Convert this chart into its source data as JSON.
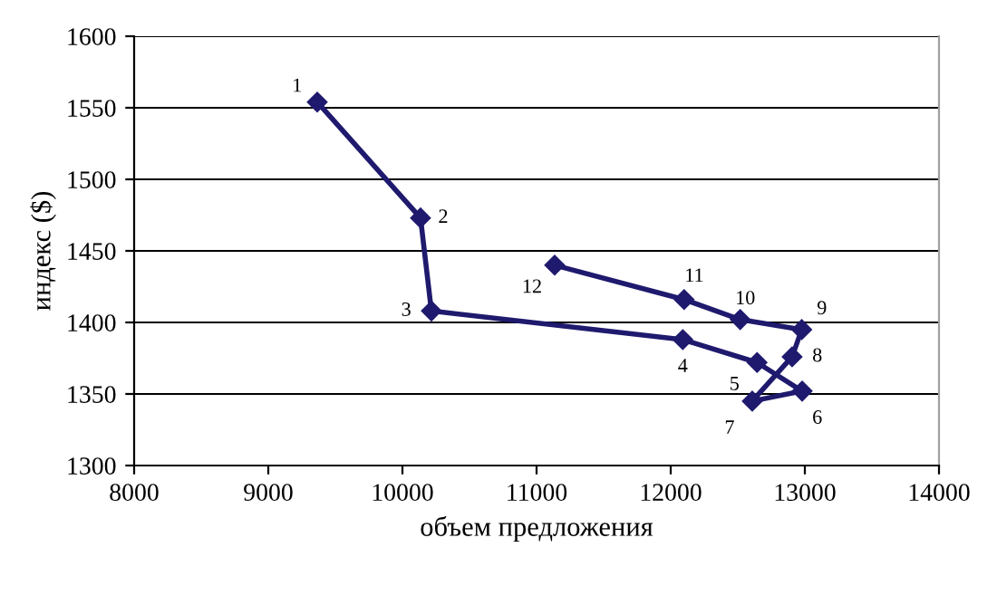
{
  "chart_data": {
    "type": "line",
    "xlabel": "объем предложения",
    "ylabel": "индекс ($)",
    "x": [
      9365,
      10135,
      10216,
      12090,
      12644,
      12980,
      12608,
      12905,
      12977,
      12518,
      12100,
      11135
    ],
    "series": [
      {
        "color": "#1f1a6e",
        "values": [
          1554,
          1473,
          1408,
          1388,
          1372,
          1352,
          1345,
          1376,
          1395,
          1402,
          1416,
          1440
        ]
      }
    ],
    "xlim": [
      8000,
      14000
    ],
    "xticks": [
      8000,
      9000,
      10000,
      11000,
      12000,
      13000,
      14000
    ],
    "ylim": [
      1300,
      1600
    ],
    "yticks": [
      1300,
      1350,
      1400,
      1450,
      1500,
      1550,
      1600
    ],
    "grid": "y",
    "marker": "diamond",
    "line_style": "solid",
    "annotations": [
      {
        "text": "1",
        "x": 9365,
        "y": 1554
      },
      {
        "text": "2",
        "x": 10135,
        "y": 1473
      },
      {
        "text": "3",
        "x": 10216,
        "y": 1408
      },
      {
        "text": "4",
        "x": 12090,
        "y": 1388
      },
      {
        "text": "5",
        "x": 12644,
        "y": 1372
      },
      {
        "text": "6",
        "x": 12980,
        "y": 1352
      },
      {
        "text": "7",
        "x": 12608,
        "y": 1345
      },
      {
        "text": "8",
        "x": 12905,
        "y": 1376
      },
      {
        "text": "9",
        "x": 12977,
        "y": 1395
      },
      {
        "text": "10",
        "x": 12518,
        "y": 1402
      },
      {
        "text": "11",
        "x": 12100,
        "y": 1416
      },
      {
        "text": "12",
        "x": 11135,
        "y": 1440
      }
    ]
  }
}
